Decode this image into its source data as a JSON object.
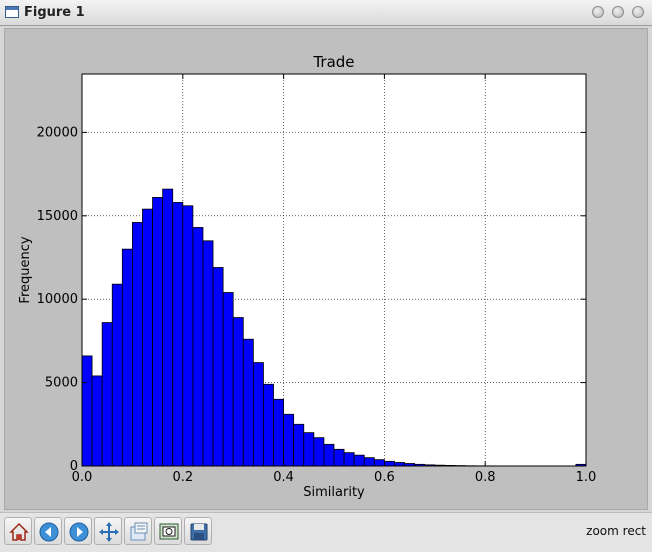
{
  "window": {
    "title": "Figure 1"
  },
  "toolbar": {
    "buttons": [
      {
        "name": "home-button",
        "icon": "home-icon"
      },
      {
        "name": "back-button",
        "icon": "arrow-left-icon"
      },
      {
        "name": "forward-button",
        "icon": "arrow-right-icon"
      },
      {
        "name": "pan-button",
        "icon": "pan-icon"
      },
      {
        "name": "configure-subplots-button",
        "icon": "subplots-icon"
      },
      {
        "name": "zoom-button",
        "icon": "zoom-rect-icon"
      },
      {
        "name": "save-button",
        "icon": "save-icon"
      }
    ],
    "status": "zoom rect"
  },
  "chart_data": {
    "type": "bar",
    "title": "Trade",
    "xlabel": "Similarity",
    "ylabel": "Frequency",
    "xlim": [
      0.0,
      1.0
    ],
    "ylim": [
      0,
      23500
    ],
    "bin_width": 0.02,
    "bin_start": 0.0,
    "values": [
      6600,
      5400,
      8600,
      10900,
      13000,
      14600,
      15400,
      16100,
      16600,
      15800,
      15600,
      14300,
      13500,
      11900,
      10400,
      8900,
      7600,
      6200,
      4900,
      4000,
      3100,
      2500,
      2000,
      1700,
      1300,
      1000,
      800,
      650,
      500,
      380,
      280,
      210,
      150,
      100,
      70,
      50,
      35,
      25,
      15,
      10,
      8,
      5,
      4,
      3,
      2,
      2,
      1,
      1,
      1,
      100
    ],
    "xticks": [
      "0.0",
      "0.2",
      "0.4",
      "0.6",
      "0.8",
      "1.0"
    ],
    "xtick_values": [
      0.0,
      0.2,
      0.4,
      0.6,
      0.8,
      1.0
    ],
    "yticks": [
      "0",
      "5000",
      "10000",
      "15000",
      "20000"
    ],
    "ytick_values": [
      0,
      5000,
      10000,
      15000,
      20000
    ],
    "grid": true,
    "bar_color": "#0000ff",
    "edge_color": "#000000"
  }
}
